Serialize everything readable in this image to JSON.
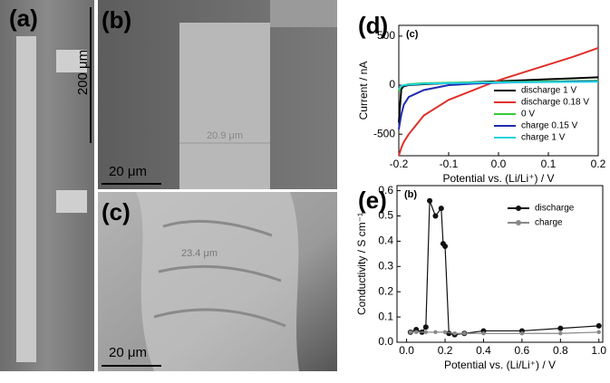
{
  "panels": {
    "a": {
      "label": "(a)",
      "scale": "200 μm"
    },
    "b": {
      "label": "(b)",
      "scale": "20 μm",
      "annotation": "20.9 μm"
    },
    "c": {
      "label": "(c)",
      "scale": "20 μm",
      "annotation": "23.4 μm"
    }
  },
  "chart_data": [
    {
      "type": "line",
      "panel_label": "(d)",
      "inset_label": "(c)",
      "x_label": "Potential vs. (Li/Li⁺) / V",
      "y_label": "Current / nA",
      "x": [
        -0.2,
        -0.195,
        -0.19,
        -0.18,
        -0.15,
        -0.1,
        -0.05,
        0,
        0.05,
        0.1,
        0.15,
        0.2
      ],
      "xlim": [
        -0.2,
        0.2
      ],
      "ylim": [
        -720,
        610
      ],
      "xticks": [
        -0.2,
        -0.1,
        {
          "value": 0,
          "label": "0.0"
        },
        0.1,
        0.2
      ],
      "yticks": [
        500,
        0,
        -500
      ],
      "series": [
        {
          "name": "discharge 1 V",
          "color": "#000000",
          "values": [
            -380,
            -40,
            -10,
            0,
            10,
            20,
            30,
            40,
            50,
            60,
            70,
            80
          ]
        },
        {
          "name": "discharge 0.18 V",
          "color": "#e0302a",
          "values": [
            -720,
            -640,
            -580,
            -500,
            -310,
            -150,
            -50,
            50,
            130,
            210,
            290,
            380
          ]
        },
        {
          "name": "0 V",
          "color": "#33cc33",
          "values": [
            -60,
            -10,
            0,
            10,
            20,
            25,
            28,
            30,
            35,
            38,
            42,
            45
          ]
        },
        {
          "name": "charge 0.15 V",
          "color": "#1f2bb0",
          "values": [
            -450,
            -300,
            -200,
            -120,
            -50,
            0,
            15,
            25,
            30,
            33,
            37,
            40
          ]
        },
        {
          "name": "charge 1 V",
          "color": "#22d3e0",
          "values": [
            -40,
            -10,
            0,
            5,
            15,
            20,
            25,
            28,
            30,
            32,
            33,
            35
          ]
        }
      ]
    },
    {
      "type": "scatter-line",
      "panel_label": "(e)",
      "inset_label": "(b)",
      "x_label": "Potential vs. (Li/Li⁺) / V",
      "y_label": "Conductivity / S cm⁻¹",
      "xlim": [
        -0.05,
        1.02
      ],
      "ylim": [
        0,
        0.62
      ],
      "xticks": [
        {
          "value": 0,
          "label": "0.0"
        },
        0.2,
        0.4,
        0.6,
        0.8,
        {
          "value": 1,
          "label": "1.0"
        }
      ],
      "yticks": [
        {
          "value": 0,
          "label": "0.0"
        },
        0.1,
        0.2,
        0.3,
        0.4,
        0.5,
        0.6
      ],
      "series": [
        {
          "name": "discharge",
          "color": "#111111",
          "x": [
            0.02,
            0.05,
            0.08,
            0.1,
            0.12,
            0.15,
            0.18,
            0.19,
            0.2,
            0.22,
            0.25,
            0.3,
            0.4,
            0.6,
            0.8,
            1.0
          ],
          "values": [
            0.04,
            0.05,
            0.04,
            0.06,
            0.56,
            0.5,
            0.53,
            0.39,
            0.38,
            0.035,
            0.03,
            0.035,
            0.045,
            0.045,
            0.055,
            0.065
          ]
        },
        {
          "name": "charge",
          "color": "#888888",
          "x": [
            0.02,
            0.05,
            0.1,
            0.15,
            0.2,
            0.25,
            0.3,
            0.4,
            0.6,
            0.8,
            1.0
          ],
          "values": [
            0.04,
            0.04,
            0.04,
            0.04,
            0.04,
            0.035,
            0.035,
            0.035,
            0.035,
            0.035,
            0.04
          ]
        }
      ]
    }
  ]
}
